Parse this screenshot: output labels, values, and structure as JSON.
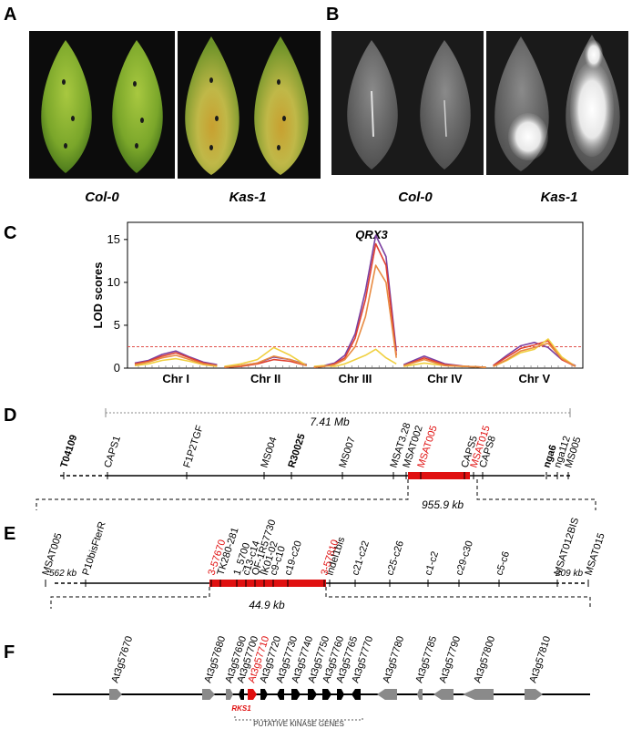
{
  "panels": {
    "A": {
      "label": "A",
      "captions": [
        "Col-0",
        "Kas-1"
      ]
    },
    "B": {
      "label": "B",
      "captions": [
        "Col-0",
        "Kas-1"
      ]
    },
    "C": {
      "label": "C"
    },
    "D": {
      "label": "D",
      "span": "7.41 Mb",
      "sub_interval": "955.9 kb",
      "markers": [
        {
          "t": "T04109",
          "bold": true
        },
        {
          "t": "CAPS1"
        },
        {
          "t": "F1P2TGF"
        },
        {
          "t": "MS004"
        },
        {
          "t": "R30025",
          "bold": true
        },
        {
          "t": "MS007"
        },
        {
          "t": "MSAT3.28"
        },
        {
          "t": "MSAT002"
        },
        {
          "t": "MSAT005",
          "red": true
        },
        {
          "t": "CAPS5"
        },
        {
          "t": "MSAT015",
          "red": true
        },
        {
          "t": "CAPS8"
        },
        {
          "t": "nga6",
          "bold": true
        },
        {
          "t": "nga112"
        },
        {
          "t": "MS005"
        }
      ]
    },
    "E": {
      "label": "E",
      "left_dist": "562 kb",
      "right_dist": "209 kb",
      "sub_interval": "44.9 kb",
      "markers": [
        {
          "t": "MSAT005"
        },
        {
          "t": "P10bisFterR"
        },
        {
          "t": "3-57670",
          "red": true
        },
        {
          "t": "TK280-281"
        },
        {
          "t": "1_5700"
        },
        {
          "t": "c13-c14"
        },
        {
          "t": "QF-1R57730"
        },
        {
          "t": "IK01-02"
        },
        {
          "t": "c9-c10"
        },
        {
          "t": "c19-c20"
        },
        {
          "t": "3-57810",
          "red": true
        },
        {
          "t": "indel1bis"
        },
        {
          "t": "c21-c22"
        },
        {
          "t": "c25-c26"
        },
        {
          "t": "c1-c2"
        },
        {
          "t": "c29-c30"
        },
        {
          "t": "c5-c6"
        },
        {
          "t": "MSAT012BIS"
        },
        {
          "t": "MSAT015"
        }
      ]
    },
    "F": {
      "label": "F",
      "gene_tag": "RKS1",
      "bracket_label": "PUTATIVE KINASE GENES",
      "genes": [
        {
          "t": "At3g57670"
        },
        {
          "t": "At3g57680"
        },
        {
          "t": "At3g57690"
        },
        {
          "t": "At3g57700"
        },
        {
          "t": "At3g57710",
          "red": true
        },
        {
          "t": "At3g57720"
        },
        {
          "t": "At3g57730"
        },
        {
          "t": "At3g57740"
        },
        {
          "t": "At3g57750"
        },
        {
          "t": "At3g57760"
        },
        {
          "t": "At3g57765"
        },
        {
          "t": "At3g57770"
        },
        {
          "t": "At3g57780"
        },
        {
          "t": "At3g57785"
        },
        {
          "t": "At3g57790"
        },
        {
          "t": "At3g57800"
        },
        {
          "t": "At3g57810"
        }
      ]
    }
  },
  "chart_data": {
    "type": "line",
    "title": "QRX3",
    "ylabel": "LOD scores",
    "xlabel": "",
    "ylim": [
      0,
      17
    ],
    "yticks": [
      0,
      5,
      10,
      15
    ],
    "threshold": 2.5,
    "chromosomes": [
      "Chr I",
      "Chr II",
      "Chr III",
      "Chr IV",
      "Chr V"
    ],
    "series": [
      {
        "color": "#7b3fa0",
        "points": {
          "Chr I": [
            0.6,
            0.9,
            1.6,
            2.0,
            1.3,
            0.7,
            0.4
          ],
          "Chr II": [
            0.1,
            0.3,
            0.6,
            1.3,
            1.0,
            0.4
          ],
          "Chr III": [
            0.1,
            0.3,
            0.6,
            1.5,
            4,
            9,
            15.5,
            13,
            2
          ],
          "Chr IV": [
            0.4,
            1.4,
            0.5,
            0.2,
            0.1
          ],
          "Chr V": [
            0.3,
            1.5,
            2.6,
            3.0,
            2.4,
            1.0,
            0.3
          ]
        }
      },
      {
        "color": "#e04030",
        "points": {
          "Chr I": [
            0.5,
            0.8,
            1.4,
            1.8,
            1.2,
            0.6,
            0.3
          ],
          "Chr II": [
            0.1,
            0.2,
            0.5,
            1.0,
            0.8,
            0.3
          ],
          "Chr III": [
            0.1,
            0.2,
            0.5,
            1.2,
            3.5,
            8,
            14.5,
            12,
            1.5
          ],
          "Chr IV": [
            0.3,
            1.2,
            0.4,
            0.2,
            0.1
          ],
          "Chr V": [
            0.3,
            1.3,
            2.3,
            2.7,
            3.2,
            1.0,
            0.2
          ]
        }
      },
      {
        "color": "#f0d040",
        "points": {
          "Chr I": [
            0.3,
            0.5,
            0.9,
            1.1,
            0.8,
            0.4,
            0.2
          ],
          "Chr II": [
            0.2,
            0.5,
            1.0,
            2.4,
            1.5,
            0.3
          ],
          "Chr III": [
            0.2,
            0.3,
            0.2,
            0.5,
            1.0,
            1.5,
            2.2,
            1.2,
            0.5
          ],
          "Chr IV": [
            0.2,
            0.6,
            0.3,
            0.2,
            0.1
          ],
          "Chr V": [
            0.2,
            0.9,
            1.8,
            2.2,
            3.4,
            1.3,
            0.2
          ]
        }
      },
      {
        "color": "#e88a40",
        "points": {
          "Chr I": [
            0.4,
            0.7,
            1.2,
            1.5,
            1.0,
            0.5,
            0.3
          ],
          "Chr II": [
            0.1,
            0.3,
            0.6,
            1.4,
            1.0,
            0.3
          ],
          "Chr III": [
            0.1,
            0.2,
            0.4,
            1.0,
            2.5,
            6,
            12,
            10,
            1.2
          ],
          "Chr IV": [
            0.3,
            1.0,
            0.3,
            0.2,
            0.1
          ],
          "Chr V": [
            0.2,
            1.0,
            2.0,
            2.4,
            2.9,
            1.1,
            0.2
          ]
        }
      }
    ]
  }
}
